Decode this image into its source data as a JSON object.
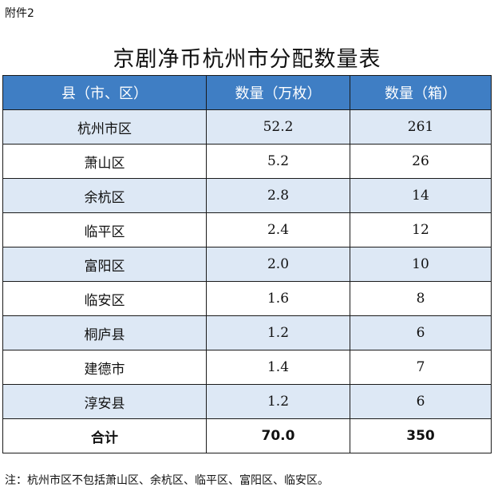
{
  "attachment_label": "附件2",
  "title": "京剧净币杭州市分配数量表",
  "headers": {
    "county": "县（市、区）",
    "quantity_wan": "数量（万枚）",
    "quantity_box": "数量（箱）"
  },
  "rows": [
    {
      "name": "杭州市区",
      "wan": "52.2",
      "box": "261"
    },
    {
      "name": "萧山区",
      "wan": "5.2",
      "box": "26"
    },
    {
      "name": "余杭区",
      "wan": "2.8",
      "box": "14"
    },
    {
      "name": "临平区",
      "wan": "2.4",
      "box": "12"
    },
    {
      "name": "富阳区",
      "wan": "2.0",
      "box": "10"
    },
    {
      "name": "临安区",
      "wan": "1.6",
      "box": "8"
    },
    {
      "name": "桐庐县",
      "wan": "1.2",
      "box": "6"
    },
    {
      "name": "建德市",
      "wan": "1.4",
      "box": "7"
    },
    {
      "name": "淳安县",
      "wan": "1.2",
      "box": "6"
    }
  ],
  "total": {
    "name": "合计",
    "wan": "70.0",
    "box": "350"
  },
  "note": "注：杭州市区不包括萧山区、余杭区、临平区、富阳区、临安区。",
  "colors": {
    "header_bg": "#3f7ec4",
    "stripe_bg": "#dde8f5"
  }
}
